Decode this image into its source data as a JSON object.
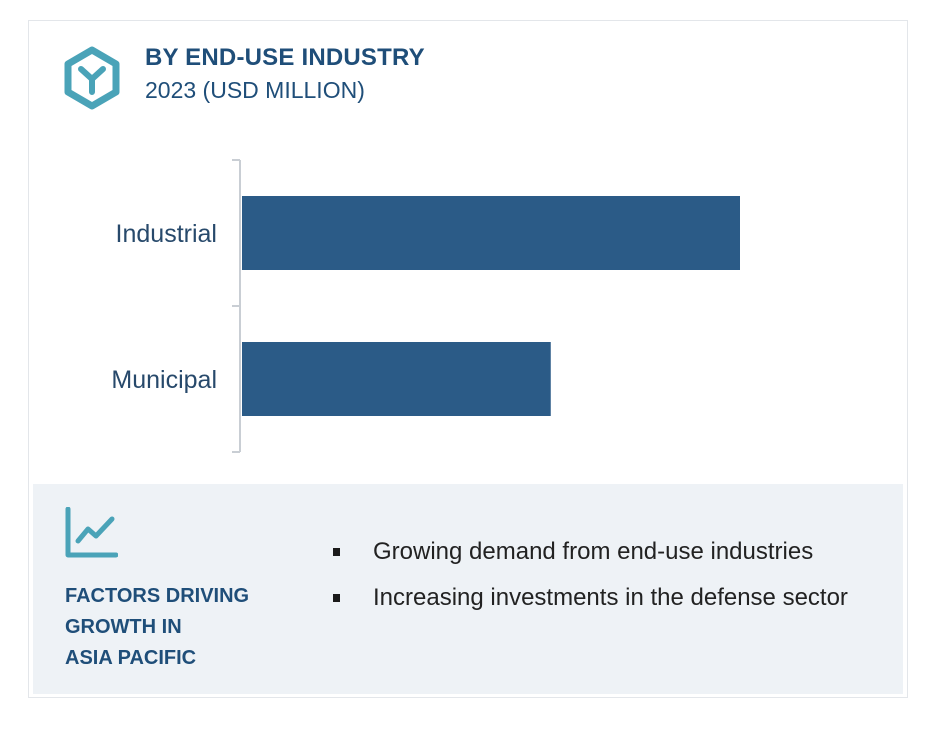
{
  "header": {
    "title": "BY END-USE INDUSTRY",
    "subtitle": "2023 (USD MILLION)",
    "icon": "hexagon-y-logo-icon"
  },
  "chart_data": {
    "type": "bar",
    "orientation": "horizontal",
    "categories": [
      "Industrial",
      "Municipal"
    ],
    "values": [
      100,
      62
    ],
    "value_note": "relative bar lengths; no axis scale shown",
    "xlim": [
      0,
      100
    ],
    "title": "BY END-USE INDUSTRY",
    "subtitle": "2023 (USD MILLION)",
    "grid": false,
    "legend": "none",
    "bar_color": "#2b5b87"
  },
  "factors": {
    "icon": "trend-line-chart-icon",
    "heading": "FACTORS DRIVING\nGROWTH IN\nASIA PACIFIC",
    "items": [
      "Growing demand from end-use industries",
      "Increasing investments in the defense sector"
    ]
  },
  "colors": {
    "accent_teal": "#4aa3b8",
    "title_blue": "#1f4e79",
    "bar_blue": "#2b5b87",
    "panel_bg": "#eef2f6"
  }
}
